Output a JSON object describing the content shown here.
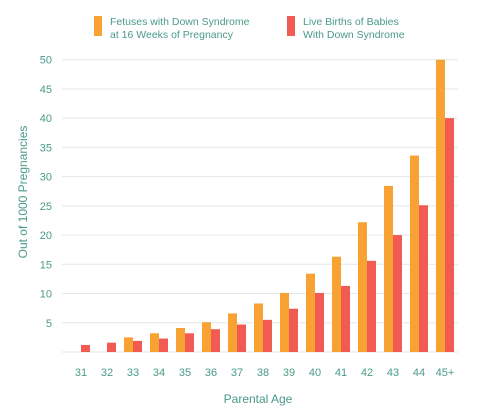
{
  "chart_data": {
    "type": "bar",
    "title": "",
    "xlabel": "Parental Age",
    "ylabel": "Out of 1000 Pregnancies",
    "ylim": [
      0,
      52
    ],
    "yticks": [
      5,
      10,
      15,
      20,
      25,
      30,
      35,
      40,
      45,
      50
    ],
    "grid": true,
    "legend_position": "top",
    "categories": [
      "31",
      "32",
      "33",
      "34",
      "35",
      "36",
      "37",
      "38",
      "39",
      "40",
      "41",
      "42",
      "43",
      "44",
      "45+"
    ],
    "series": [
      {
        "name": "Fetuses with Down Syndrome at 16 Weeks of Pregnancy",
        "legend_lines": [
          "Fetuses with Down Syndrome",
          "at 16 Weeks of Pregnancy"
        ],
        "color": "#f7a233",
        "values": [
          null,
          null,
          2.5,
          3.2,
          4.1,
          5.1,
          6.6,
          8.3,
          10.1,
          13.4,
          16.3,
          22.2,
          28.4,
          33.6,
          50.0
        ]
      },
      {
        "name": "Live Births of Babies With Down Syndrome",
        "legend_lines": [
          "Live Births of Babies",
          "With Down Syndrome"
        ],
        "color": "#f25a54",
        "values": [
          1.2,
          1.6,
          1.9,
          2.3,
          3.2,
          3.9,
          4.7,
          5.5,
          7.4,
          10.1,
          11.3,
          15.6,
          20.0,
          25.1,
          40.0
        ]
      }
    ]
  }
}
